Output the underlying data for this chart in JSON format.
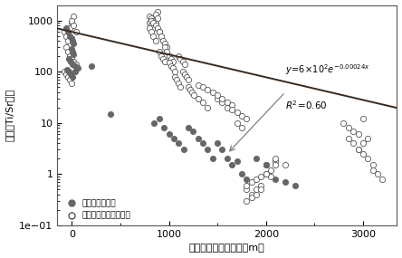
{
  "title": "",
  "xlabel": "综泥石距离矿体距离（m）",
  "ylabel": "综泥石Ti/Sr比值",
  "xlim": [
    -150,
    3350
  ],
  "ylim_log": [
    0.1,
    2000
  ],
  "fit_a": 600,
  "fit_b": -0.00102,
  "line_color": "#3a2a1e",
  "background_color": "#ffffff",
  "dark_scatter_color": "#666666",
  "open_scatter_color": "#ffffff",
  "open_scatter_edge": "#555555",
  "legend_label1": "土屋铜矿综泥石",
  "legend_label2": "巴都希费鸟铜矿综泥石",
  "dark_x": [
    -60,
    -40,
    -20,
    0,
    10,
    20,
    0,
    10,
    20,
    -30,
    -10,
    10,
    30,
    50,
    -50,
    -30,
    -10,
    10,
    30,
    200,
    400,
    850,
    900,
    950,
    1000,
    1050,
    1100,
    1150,
    1200,
    1250,
    1300,
    1350,
    1400,
    1450,
    1500,
    1550,
    1600,
    1650,
    1700,
    1750,
    1800,
    1900,
    2000,
    2100,
    2200,
    2300
  ],
  "dark_y": [
    700,
    600,
    500,
    450,
    400,
    350,
    280,
    250,
    220,
    180,
    160,
    140,
    130,
    120,
    110,
    100,
    90,
    80,
    100,
    130,
    15,
    10,
    12,
    8,
    6,
    5,
    4,
    3,
    8,
    7,
    5,
    4,
    3,
    2,
    4,
    3,
    2,
    1.5,
    1.8,
    1.0,
    0.8,
    2.0,
    1.5,
    0.8,
    0.7,
    0.6
  ],
  "open_x": [
    -80,
    -60,
    -40,
    -20,
    0,
    20,
    0,
    20,
    40,
    -60,
    -40,
    -20,
    0,
    20,
    40,
    60,
    -80,
    -60,
    -40,
    -20,
    0,
    800,
    820,
    840,
    860,
    880,
    800,
    820,
    840,
    860,
    880,
    800,
    820,
    840,
    860,
    820,
    840,
    860,
    880,
    900,
    900,
    920,
    940,
    960,
    980,
    900,
    920,
    940,
    960,
    960,
    980,
    1000,
    1020,
    1040,
    1000,
    1020,
    1040,
    1060,
    1060,
    1080,
    1100,
    1120,
    1100,
    1120,
    1140,
    1160,
    1140,
    1160,
    1180,
    1200,
    1200,
    1220,
    1240,
    1260,
    1300,
    1350,
    1400,
    1300,
    1350,
    1400,
    1450,
    1500,
    1550,
    1600,
    1500,
    1550,
    1600,
    1650,
    1650,
    1700,
    1750,
    1800,
    1700,
    1750,
    1800,
    1850,
    1900,
    1950,
    2000,
    2050,
    2100,
    1800,
    1850,
    1900,
    1950,
    2000,
    2050,
    2100,
    1800,
    1850,
    1900,
    1950,
    2000,
    2100,
    2200,
    2800,
    2850,
    2900,
    2950,
    3000,
    2850,
    2900,
    2950,
    3000,
    3050,
    2950,
    3000,
    3050,
    3100,
    3100,
    3150,
    3200
  ],
  "open_y": [
    600,
    500,
    400,
    700,
    900,
    1200,
    1000,
    800,
    600,
    300,
    250,
    200,
    180,
    160,
    140,
    120,
    100,
    90,
    80,
    70,
    60,
    1200,
    1100,
    1000,
    900,
    1500,
    900,
    800,
    700,
    1300,
    1100,
    700,
    600,
    500,
    400,
    1000,
    900,
    800,
    700,
    600,
    600,
    500,
    400,
    350,
    300,
    250,
    200,
    180,
    160,
    300,
    250,
    200,
    180,
    160,
    150,
    130,
    120,
    100,
    80,
    70,
    60,
    50,
    200,
    180,
    160,
    140,
    100,
    90,
    80,
    70,
    50,
    45,
    40,
    35,
    30,
    25,
    20,
    55,
    50,
    45,
    40,
    30,
    25,
    20,
    35,
    30,
    25,
    22,
    18,
    16,
    14,
    12,
    10,
    8,
    0.5,
    0.4,
    0.5,
    0.6,
    1.5,
    1.2,
    1.8,
    0.3,
    0.35,
    0.4,
    0.5,
    1.0,
    0.9,
    1.5,
    0.6,
    0.7,
    0.8,
    0.9,
    1.0,
    2.0,
    1.5,
    10,
    8,
    7,
    6,
    12,
    5,
    4,
    3,
    4,
    5,
    3,
    2.5,
    2.0,
    1.5,
    1.2,
    1.0,
    0.8
  ]
}
